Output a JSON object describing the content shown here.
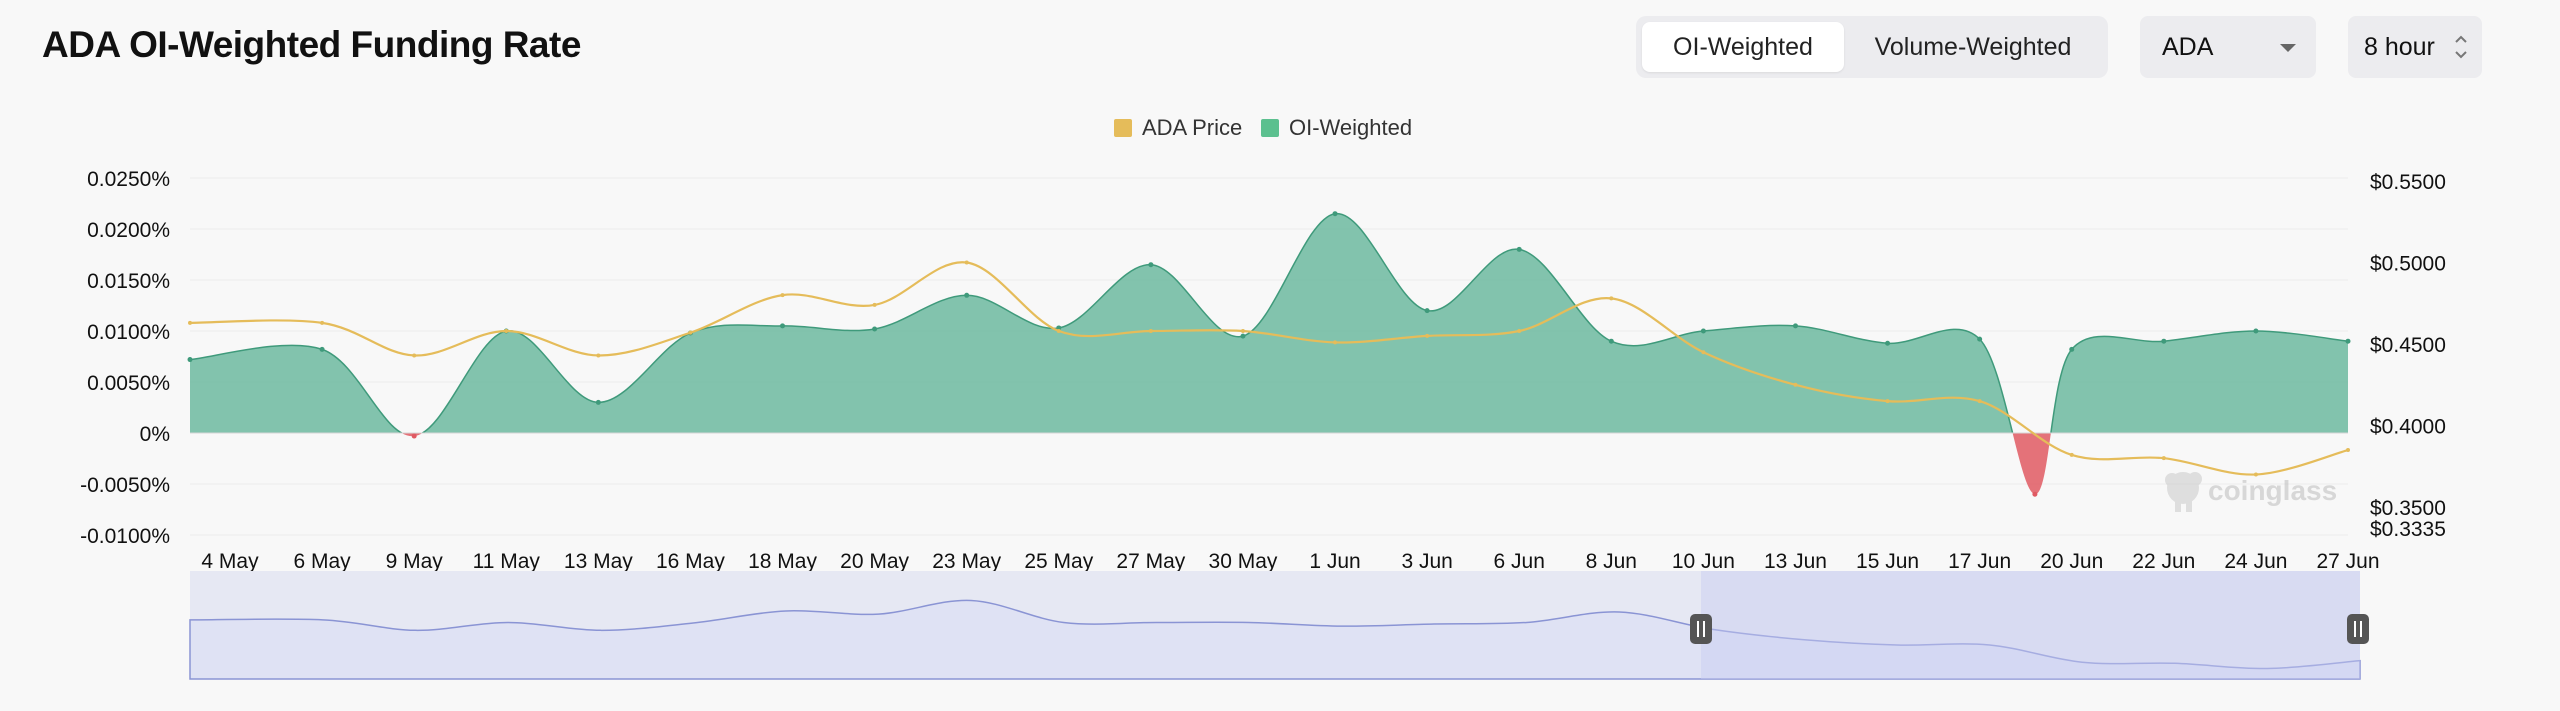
{
  "header": {
    "title": "ADA OI-Weighted Funding Rate"
  },
  "toggle": {
    "options": [
      "OI-Weighted",
      "Volume-Weighted"
    ],
    "active": "OI-Weighted"
  },
  "symbol_select": {
    "value": "ADA"
  },
  "interval_select": {
    "value": "8 hour"
  },
  "watermark": "coinglass",
  "colors": {
    "price_line": "#e5bc5a",
    "funding_positive": "#68b79c",
    "funding_negative": "#e05a63",
    "navigator_fill": "#dfe2f4",
    "navigator_line": "#8a94d4"
  },
  "chart_data": {
    "type": "area",
    "legend": [
      {
        "name": "ADA Price",
        "color": "#e5bc5a"
      },
      {
        "name": "OI-Weighted",
        "color": "#5cc08f"
      }
    ],
    "legend_position": "top-center",
    "x_ticks": [
      "4 May",
      "6 May",
      "9 May",
      "11 May",
      "13 May",
      "16 May",
      "18 May",
      "20 May",
      "23 May",
      "25 May",
      "27 May",
      "30 May",
      "1 Jun",
      "3 Jun",
      "6 Jun",
      "8 Jun",
      "10 Jun",
      "13 Jun",
      "15 Jun",
      "17 Jun",
      "20 Jun",
      "22 Jun",
      "24 Jun",
      "27 Jun"
    ],
    "y_left": {
      "ticks": [
        "0.0250%",
        "0.0200%",
        "0.0150%",
        "0.0100%",
        "0.0050%",
        "0%",
        "-0.0050%",
        "-0.0100%"
      ],
      "range": [
        -0.01,
        0.025
      ]
    },
    "y_right": {
      "ticks": [
        "$0.5500",
        "$0.5000",
        "$0.4500",
        "$0.4000",
        "$0.3500",
        "$0.3335"
      ],
      "range": [
        0.3335,
        0.55
      ]
    },
    "grid": true,
    "series": [
      {
        "name": "OI-Weighted",
        "x": [
          "4 May",
          "6 May",
          "9 May",
          "11 May",
          "13 May",
          "16 May",
          "18 May",
          "20 May",
          "23 May",
          "25 May",
          "27 May",
          "30 May",
          "1 Jun",
          "3 Jun",
          "6 Jun",
          "8 Jun",
          "10 Jun",
          "13 Jun",
          "15 Jun",
          "17 Jun",
          "19 Jun",
          "20 Jun",
          "22 Jun",
          "24 Jun",
          "27 Jun"
        ],
        "values": [
          0.0072,
          0.0082,
          -0.0003,
          0.01,
          0.003,
          0.0098,
          0.0105,
          0.0102,
          0.0135,
          0.0103,
          0.0165,
          0.0095,
          0.0215,
          0.012,
          0.018,
          0.009,
          0.01,
          0.0105,
          0.0088,
          0.0092,
          -0.006,
          0.0082,
          0.009,
          0.01,
          0.009
        ]
      },
      {
        "name": "ADA Price",
        "x": [
          "4 May",
          "6 May",
          "9 May",
          "11 May",
          "13 May",
          "16 May",
          "18 May",
          "20 May",
          "23 May",
          "25 May",
          "27 May",
          "30 May",
          "1 Jun",
          "3 Jun",
          "6 Jun",
          "8 Jun",
          "10 Jun",
          "13 Jun",
          "15 Jun",
          "17 Jun",
          "20 Jun",
          "22 Jun",
          "24 Jun",
          "27 Jun"
        ],
        "values": [
          0.463,
          0.463,
          0.443,
          0.458,
          0.443,
          0.457,
          0.48,
          0.474,
          0.5,
          0.458,
          0.458,
          0.458,
          0.451,
          0.455,
          0.458,
          0.478,
          0.445,
          0.425,
          0.415,
          0.415,
          0.382,
          0.38,
          0.37,
          0.385
        ]
      }
    ]
  }
}
